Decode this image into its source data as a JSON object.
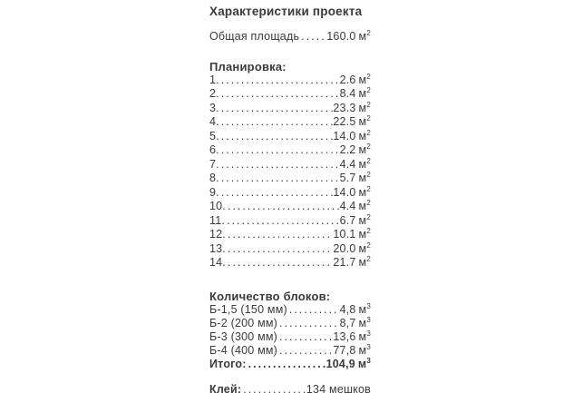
{
  "page": {
    "background_color": "#ffffff",
    "text_color": "#3a3a3a"
  },
  "content": {
    "title": "Характеристики проекта",
    "total_area": {
      "label": "Общая площадь",
      "value": "160.0",
      "unit": "м",
      "unit_sup": "2"
    },
    "planning": {
      "heading": "Планировка:",
      "items": [
        {
          "label": "1.",
          "value": "2.6",
          "unit": "м",
          "unit_sup": "2"
        },
        {
          "label": "2.",
          "value": "8.4",
          "unit": "м",
          "unit_sup": "2"
        },
        {
          "label": "3.",
          "value": "23.3",
          "unit": "м",
          "unit_sup": "2"
        },
        {
          "label": "4.",
          "value": "22.5",
          "unit": "м",
          "unit_sup": "2"
        },
        {
          "label": "5.",
          "value": "14.0",
          "unit": "м",
          "unit_sup": "2"
        },
        {
          "label": "6.",
          "value": "2.2",
          "unit": "м",
          "unit_sup": "2"
        },
        {
          "label": "7.",
          "value": "4.4",
          "unit": "м",
          "unit_sup": "2"
        },
        {
          "label": "8.",
          "value": "5.7",
          "unit": "м",
          "unit_sup": "2"
        },
        {
          "label": "9.",
          "value": "14.0",
          "unit": "м",
          "unit_sup": "2"
        },
        {
          "label": "10.",
          "value": "4.4",
          "unit": "м",
          "unit_sup": "2"
        },
        {
          "label": "11.",
          "value": "6.7",
          "unit": "м",
          "unit_sup": "2"
        },
        {
          "label": "12.",
          "value": "10.1",
          "unit": "м",
          "unit_sup": "2"
        },
        {
          "label": "13.",
          "value": "20.0",
          "unit": "м",
          "unit_sup": "2"
        },
        {
          "label": "14.",
          "value": "21.7",
          "unit": "м",
          "unit_sup": "2"
        }
      ]
    },
    "blocks": {
      "heading": "Количество блоков:",
      "items": [
        {
          "label": "Б-1,5 (150 мм)",
          "value": "4,8",
          "unit": "м",
          "unit_sup": "3"
        },
        {
          "label": "Б-2 (200 мм)",
          "value": "8,7",
          "unit": "м",
          "unit_sup": "3"
        },
        {
          "label": "Б-3 (300 мм)",
          "value": "13,6",
          "unit": "м",
          "unit_sup": "3"
        },
        {
          "label": "Б-4 (400 мм)",
          "value": "77,8",
          "unit": "м",
          "unit_sup": "3"
        }
      ],
      "total": {
        "label": "Итого:",
        "value": "104,9",
        "unit": "м",
        "unit_sup": "3"
      }
    },
    "glue": {
      "label": "Клей:",
      "value": "134 мешков"
    }
  }
}
